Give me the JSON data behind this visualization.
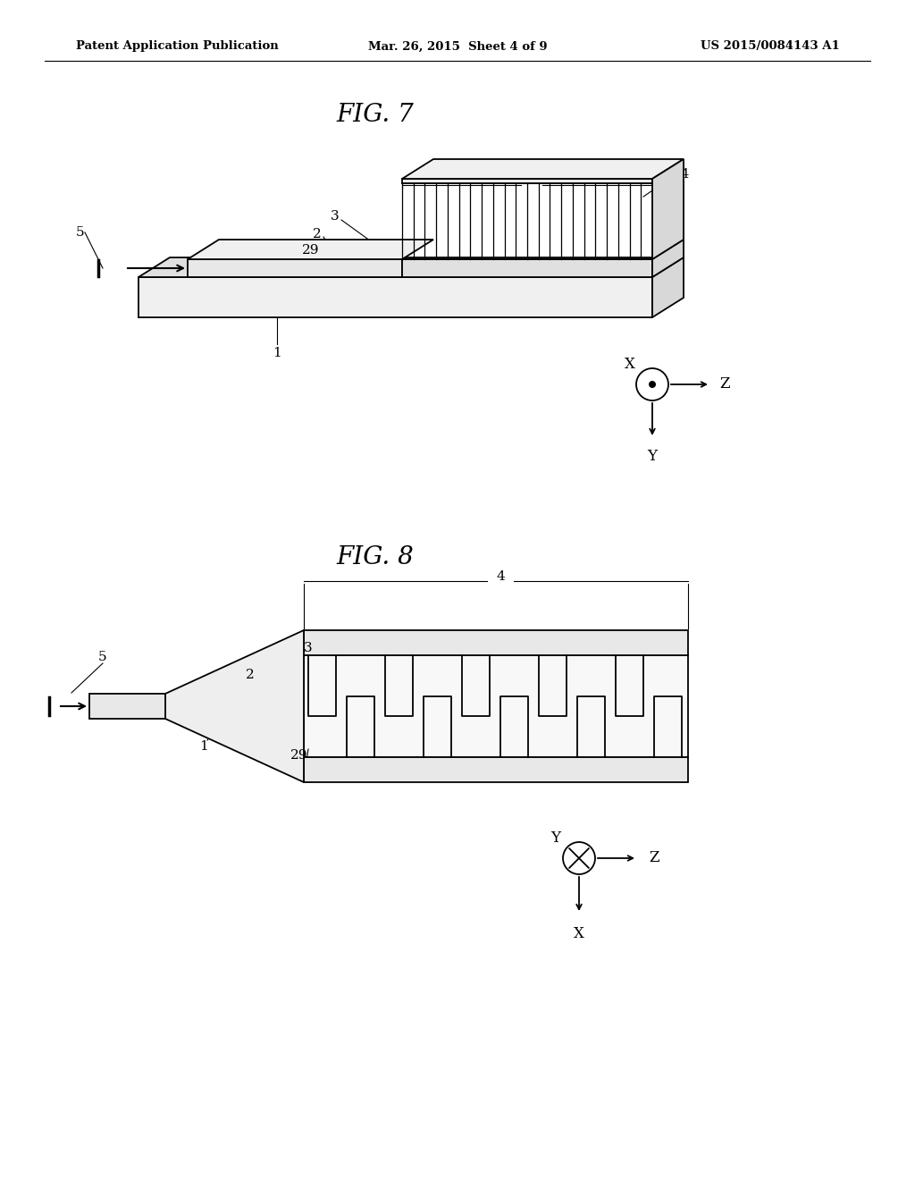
{
  "bg_color": "#ffffff",
  "line_color": "#000000",
  "gray_light": "#e8e8e8",
  "gray_mid": "#d0d0d0",
  "gray_dark": "#b0b0b0",
  "header_left": "Patent Application Publication",
  "header_mid": "Mar. 26, 2015  Sheet 4 of 9",
  "header_right": "US 2015/0084143 A1",
  "fig7_title": "FIG. 7",
  "fig8_title": "FIG. 8"
}
